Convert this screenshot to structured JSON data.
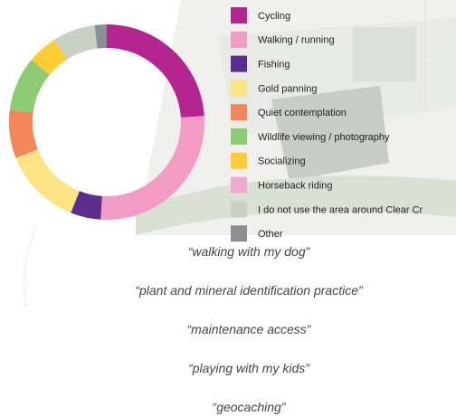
{
  "chart_data": {
    "type": "donut",
    "categories": [
      "Cycling",
      "Walking / running",
      "Fishing",
      "Gold panning",
      "Quiet contemplation",
      "Wildlife viewing / photography",
      "Socializing",
      "Horseback riding",
      "I do not use the area around Clear Cr",
      "Other"
    ],
    "values": [
      24,
      27,
      5,
      13,
      8,
      9,
      5,
      0,
      7,
      2
    ],
    "colors": [
      "#b5258f",
      "#f39bc5",
      "#5b2d8e",
      "#fde384",
      "#f3875a",
      "#8dcb74",
      "#ffcc33",
      "#f0a8cf",
      "#c8d2c4",
      "#8b8f94"
    ]
  },
  "quotes": [
    "“walking with my dog”",
    "“plant and mineral identification practice”",
    "“maintenance access”",
    "“playing with my kids”",
    "“geocaching”"
  ]
}
